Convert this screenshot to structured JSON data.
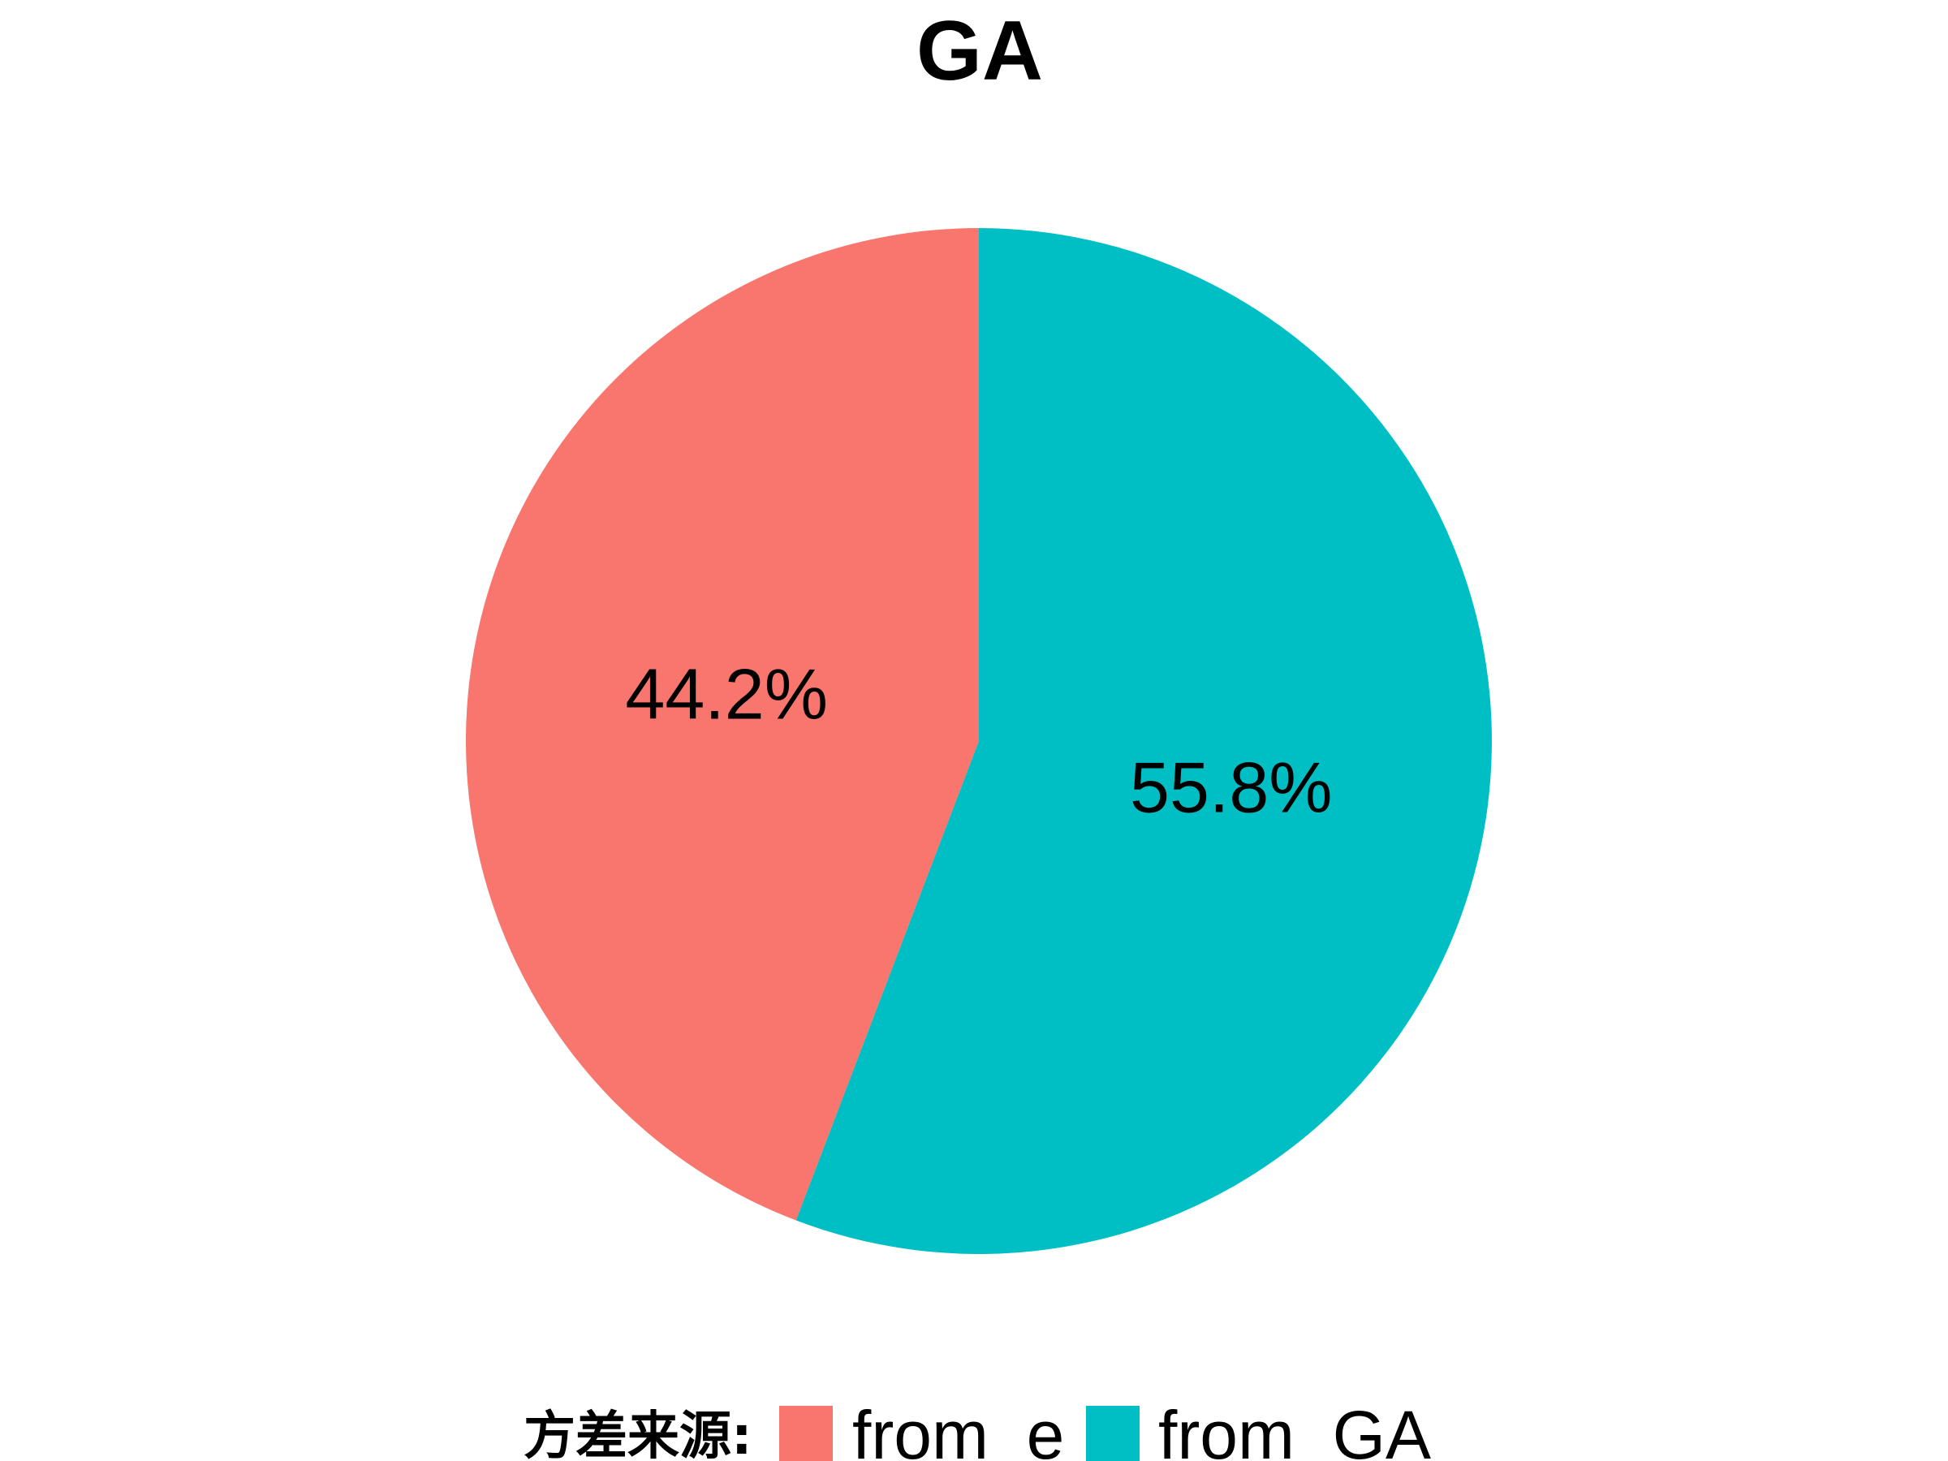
{
  "chart_data": {
    "type": "pie",
    "title": "GA",
    "categories": [
      "from  e",
      "from  GA"
    ],
    "values": [
      44.2,
      55.8
    ],
    "labels": [
      "44.2%",
      "55.8%"
    ],
    "colors": [
      "#F8766D",
      "#00BFC4"
    ],
    "start_angle_deg": 0,
    "direction": "counterclockwise",
    "legend": {
      "title": "方差来源:",
      "position": "bottom"
    }
  }
}
